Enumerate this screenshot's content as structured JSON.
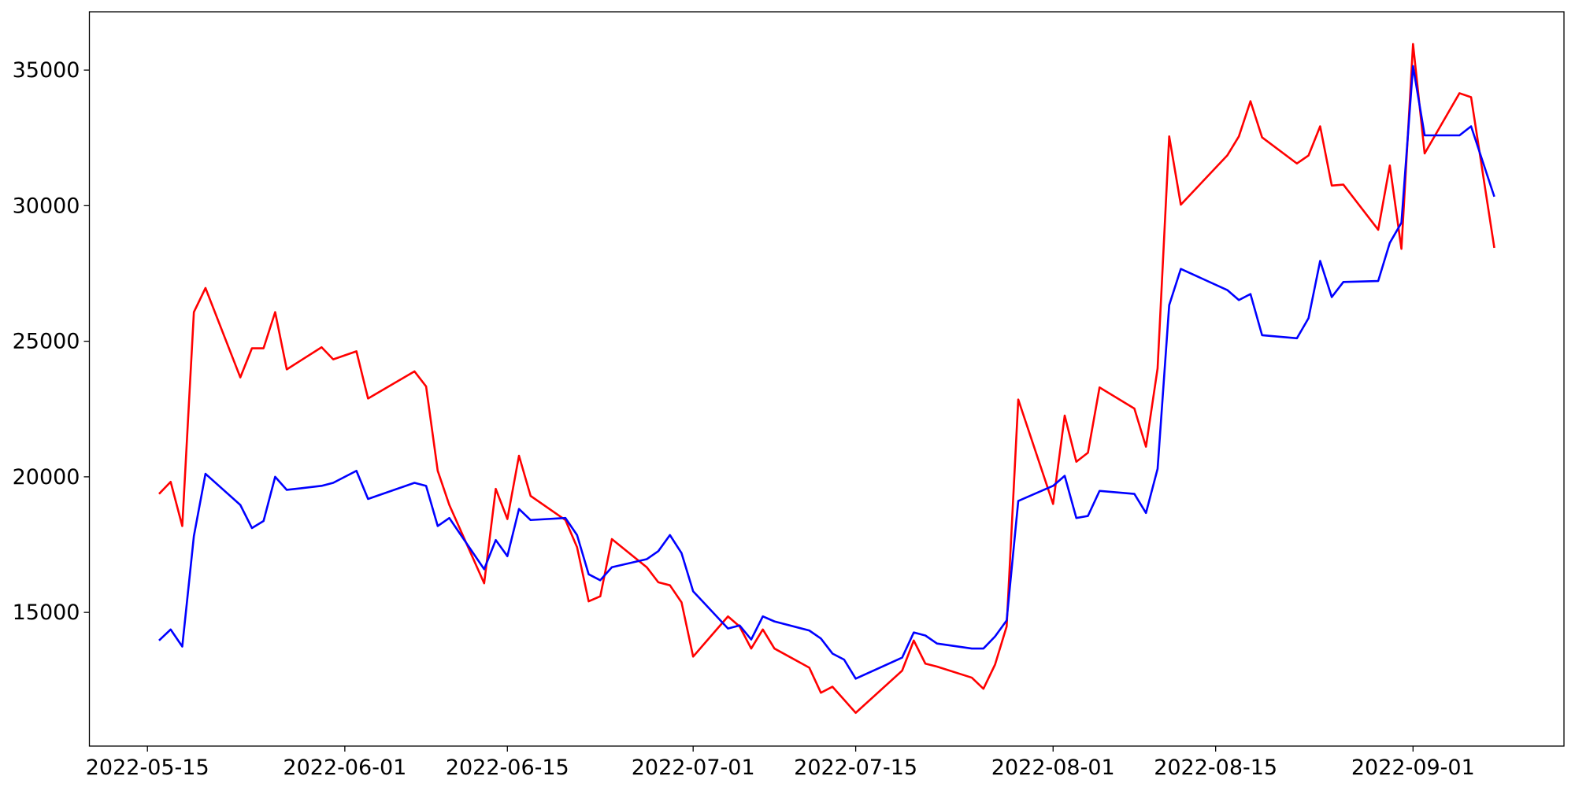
{
  "chart_data": {
    "type": "line",
    "x": [
      "2022-05-16",
      "2022-05-17",
      "2022-05-18",
      "2022-05-19",
      "2022-05-20",
      "2022-05-23",
      "2022-05-24",
      "2022-05-25",
      "2022-05-26",
      "2022-05-27",
      "2022-05-30",
      "2022-05-31",
      "2022-06-02",
      "2022-06-03",
      "2022-06-07",
      "2022-06-08",
      "2022-06-09",
      "2022-06-10",
      "2022-06-13",
      "2022-06-14",
      "2022-06-15",
      "2022-06-16",
      "2022-06-17",
      "2022-06-20",
      "2022-06-21",
      "2022-06-22",
      "2022-06-23",
      "2022-06-24",
      "2022-06-27",
      "2022-06-28",
      "2022-06-29",
      "2022-06-30",
      "2022-07-01",
      "2022-07-04",
      "2022-07-05",
      "2022-07-06",
      "2022-07-07",
      "2022-07-08",
      "2022-07-11",
      "2022-07-12",
      "2022-07-13",
      "2022-07-14",
      "2022-07-15",
      "2022-07-19",
      "2022-07-20",
      "2022-07-21",
      "2022-07-22",
      "2022-07-25",
      "2022-07-26",
      "2022-07-27",
      "2022-07-28",
      "2022-07-29",
      "2022-08-01",
      "2022-08-02",
      "2022-08-03",
      "2022-08-04",
      "2022-08-05",
      "2022-08-08",
      "2022-08-09",
      "2022-08-10",
      "2022-08-11",
      "2022-08-12",
      "2022-08-16",
      "2022-08-17",
      "2022-08-18",
      "2022-08-19",
      "2022-08-22",
      "2022-08-23",
      "2022-08-24",
      "2022-08-25",
      "2022-08-26",
      "2022-08-29",
      "2022-08-30",
      "2022-08-31",
      "2022-09-01",
      "2022-09-02",
      "2022-09-05",
      "2022-09-06",
      "2022-09-08"
    ],
    "series": [
      {
        "color": "#ff0000",
        "values": [
          19370,
          19815,
          18185,
          26074,
          26963,
          23667,
          24741,
          24741,
          26074,
          23963,
          24778,
          24333,
          24630,
          22889,
          23889,
          23333,
          20222,
          18963,
          16074,
          19556,
          18444,
          20778,
          19296,
          18407,
          17407,
          15407,
          15593,
          17704,
          16667,
          16111,
          16000,
          15370,
          13370,
          14852,
          14481,
          13667,
          14370,
          13667,
          12963,
          12037,
          12259,
          11778,
          11296,
          12852,
          13963,
          13111,
          13000,
          12593,
          12185,
          13074,
          14481,
          22852,
          19000,
          22259,
          20556,
          20889,
          23296,
          22519,
          21111,
          24000,
          32556,
          30037,
          31852,
          32556,
          33852,
          32519,
          31556,
          31852,
          32926,
          30741,
          30778,
          29111,
          31481,
          28407,
          35963,
          31926,
          34148,
          34000,
          28444
        ]
      },
      {
        "color": "#0000ff",
        "values": [
          13963,
          14370,
          13741,
          17815,
          20111,
          18963,
          18111,
          18370,
          20000,
          19519,
          19667,
          19778,
          20222,
          19185,
          19778,
          19667,
          18185,
          18481,
          16593,
          17667,
          17074,
          18815,
          18407,
          18481,
          17852,
          16407,
          16185,
          16667,
          16963,
          17259,
          17852,
          17185,
          15778,
          14407,
          14519,
          14000,
          14852,
          14667,
          14333,
          14037,
          13481,
          13259,
          12556,
          13333,
          14259,
          14148,
          13852,
          13667,
          13667,
          14111,
          14704,
          19111,
          19667,
          20037,
          18481,
          18556,
          19481,
          19370,
          18667,
          20296,
          26333,
          27667,
          26889,
          26519,
          26741,
          25222,
          25111,
          25852,
          27963,
          26630,
          27185,
          27222,
          28630,
          29370,
          35148,
          32593,
          32593,
          32926,
          30333
        ]
      }
    ],
    "xlim": [
      "2022-05-10",
      "2022-09-14"
    ],
    "xticks": [
      "2022-05-15",
      "2022-06-01",
      "2022-06-15",
      "2022-07-01",
      "2022-07-15",
      "2022-08-01",
      "2022-08-15",
      "2022-09-01"
    ],
    "ylim": [
      10070,
      37150
    ],
    "yticks": [
      15000,
      20000,
      25000,
      30000,
      35000
    ],
    "grid": false
  }
}
